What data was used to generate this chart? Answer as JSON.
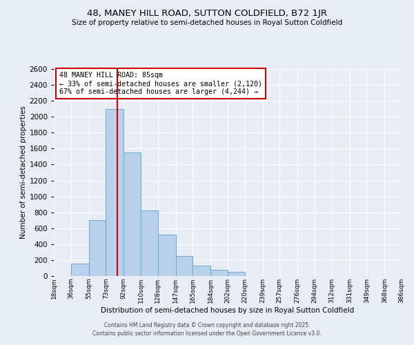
{
  "title": "48, MANEY HILL ROAD, SUTTON COLDFIELD, B72 1JR",
  "subtitle": "Size of property relative to semi-detached houses in Royal Sutton Coldfield",
  "xlabel": "Distribution of semi-detached houses by size in Royal Sutton Coldfield",
  "ylabel": "Number of semi-detached properties",
  "bin_labels": [
    "18sqm",
    "36sqm",
    "55sqm",
    "73sqm",
    "92sqm",
    "110sqm",
    "128sqm",
    "147sqm",
    "165sqm",
    "184sqm",
    "202sqm",
    "220sqm",
    "239sqm",
    "257sqm",
    "276sqm",
    "294sqm",
    "312sqm",
    "331sqm",
    "349sqm",
    "368sqm",
    "386sqm"
  ],
  "bin_edges": [
    18,
    36,
    55,
    73,
    92,
    110,
    128,
    147,
    165,
    184,
    202,
    220,
    239,
    257,
    276,
    294,
    312,
    331,
    349,
    368,
    386
  ],
  "bar_heights": [
    0,
    160,
    700,
    2100,
    1550,
    820,
    520,
    255,
    130,
    75,
    50,
    0,
    0,
    0,
    0,
    0,
    0,
    0,
    0,
    0
  ],
  "bar_facecolor": "#b8d0ea",
  "bar_edgecolor": "#6aaad4",
  "property_value": 85,
  "vline_color": "#cc0000",
  "annotation_title": "48 MANEY HILL ROAD: 85sqm",
  "annotation_line1": "← 33% of semi-detached houses are smaller (2,120)",
  "annotation_line2": "67% of semi-detached houses are larger (4,244) →",
  "annotation_box_edgecolor": "#cc0000",
  "ylim": [
    0,
    2600
  ],
  "yticks": [
    0,
    200,
    400,
    600,
    800,
    1000,
    1200,
    1400,
    1600,
    1800,
    2000,
    2200,
    2400,
    2600
  ],
  "background_color": "#e8edf5",
  "plot_bg_color": "#e8edf5",
  "grid_color": "#ffffff",
  "footnote1": "Contains HM Land Registry data © Crown copyright and database right 2025.",
  "footnote2": "Contains public sector information licensed under the Open Government Licence v3.0."
}
